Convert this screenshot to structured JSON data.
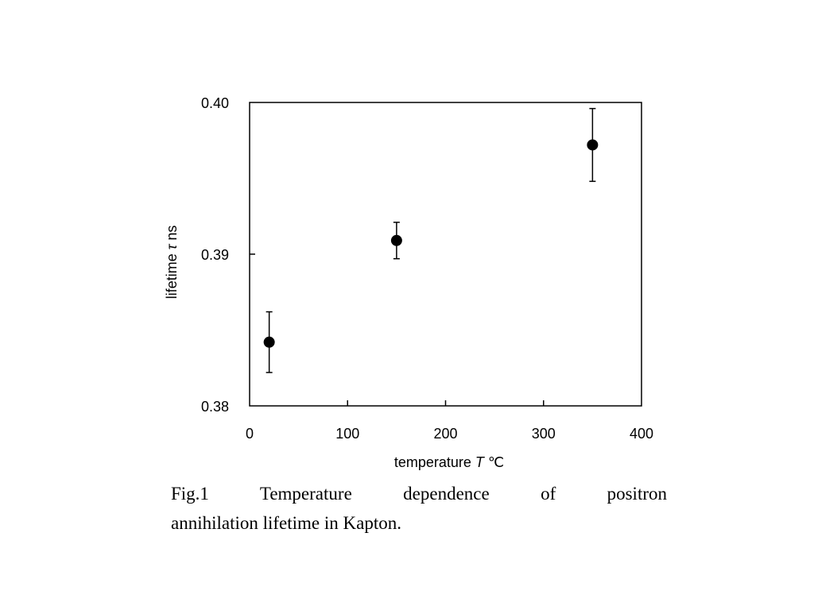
{
  "chart_data": {
    "type": "scatter",
    "x_ticks": [
      "0",
      "100",
      "200",
      "300",
      "400"
    ],
    "y_ticks": [
      "0.38",
      "0.39",
      "0.40"
    ],
    "xlim": [
      0,
      400
    ],
    "ylim": [
      0.38,
      0.4
    ],
    "xlabel": {
      "prefix": "temperature ",
      "symbol": "T",
      "unit": " ℃"
    },
    "ylabel": {
      "prefix": "lifetime ",
      "symbol": "τ",
      "unit": " ns"
    },
    "grid": false,
    "legend": "none",
    "series": [
      {
        "x": [
          20,
          150,
          350
        ],
        "y": [
          0.3842,
          0.3909,
          0.3972
        ],
        "error": [
          0.002,
          0.0012,
          0.0024
        ]
      }
    ],
    "marker_color": "#000000"
  },
  "caption": {
    "line1": "Fig.1 Temperature dependence of positron",
    "line2": "annihilation lifetime in Kapton."
  }
}
